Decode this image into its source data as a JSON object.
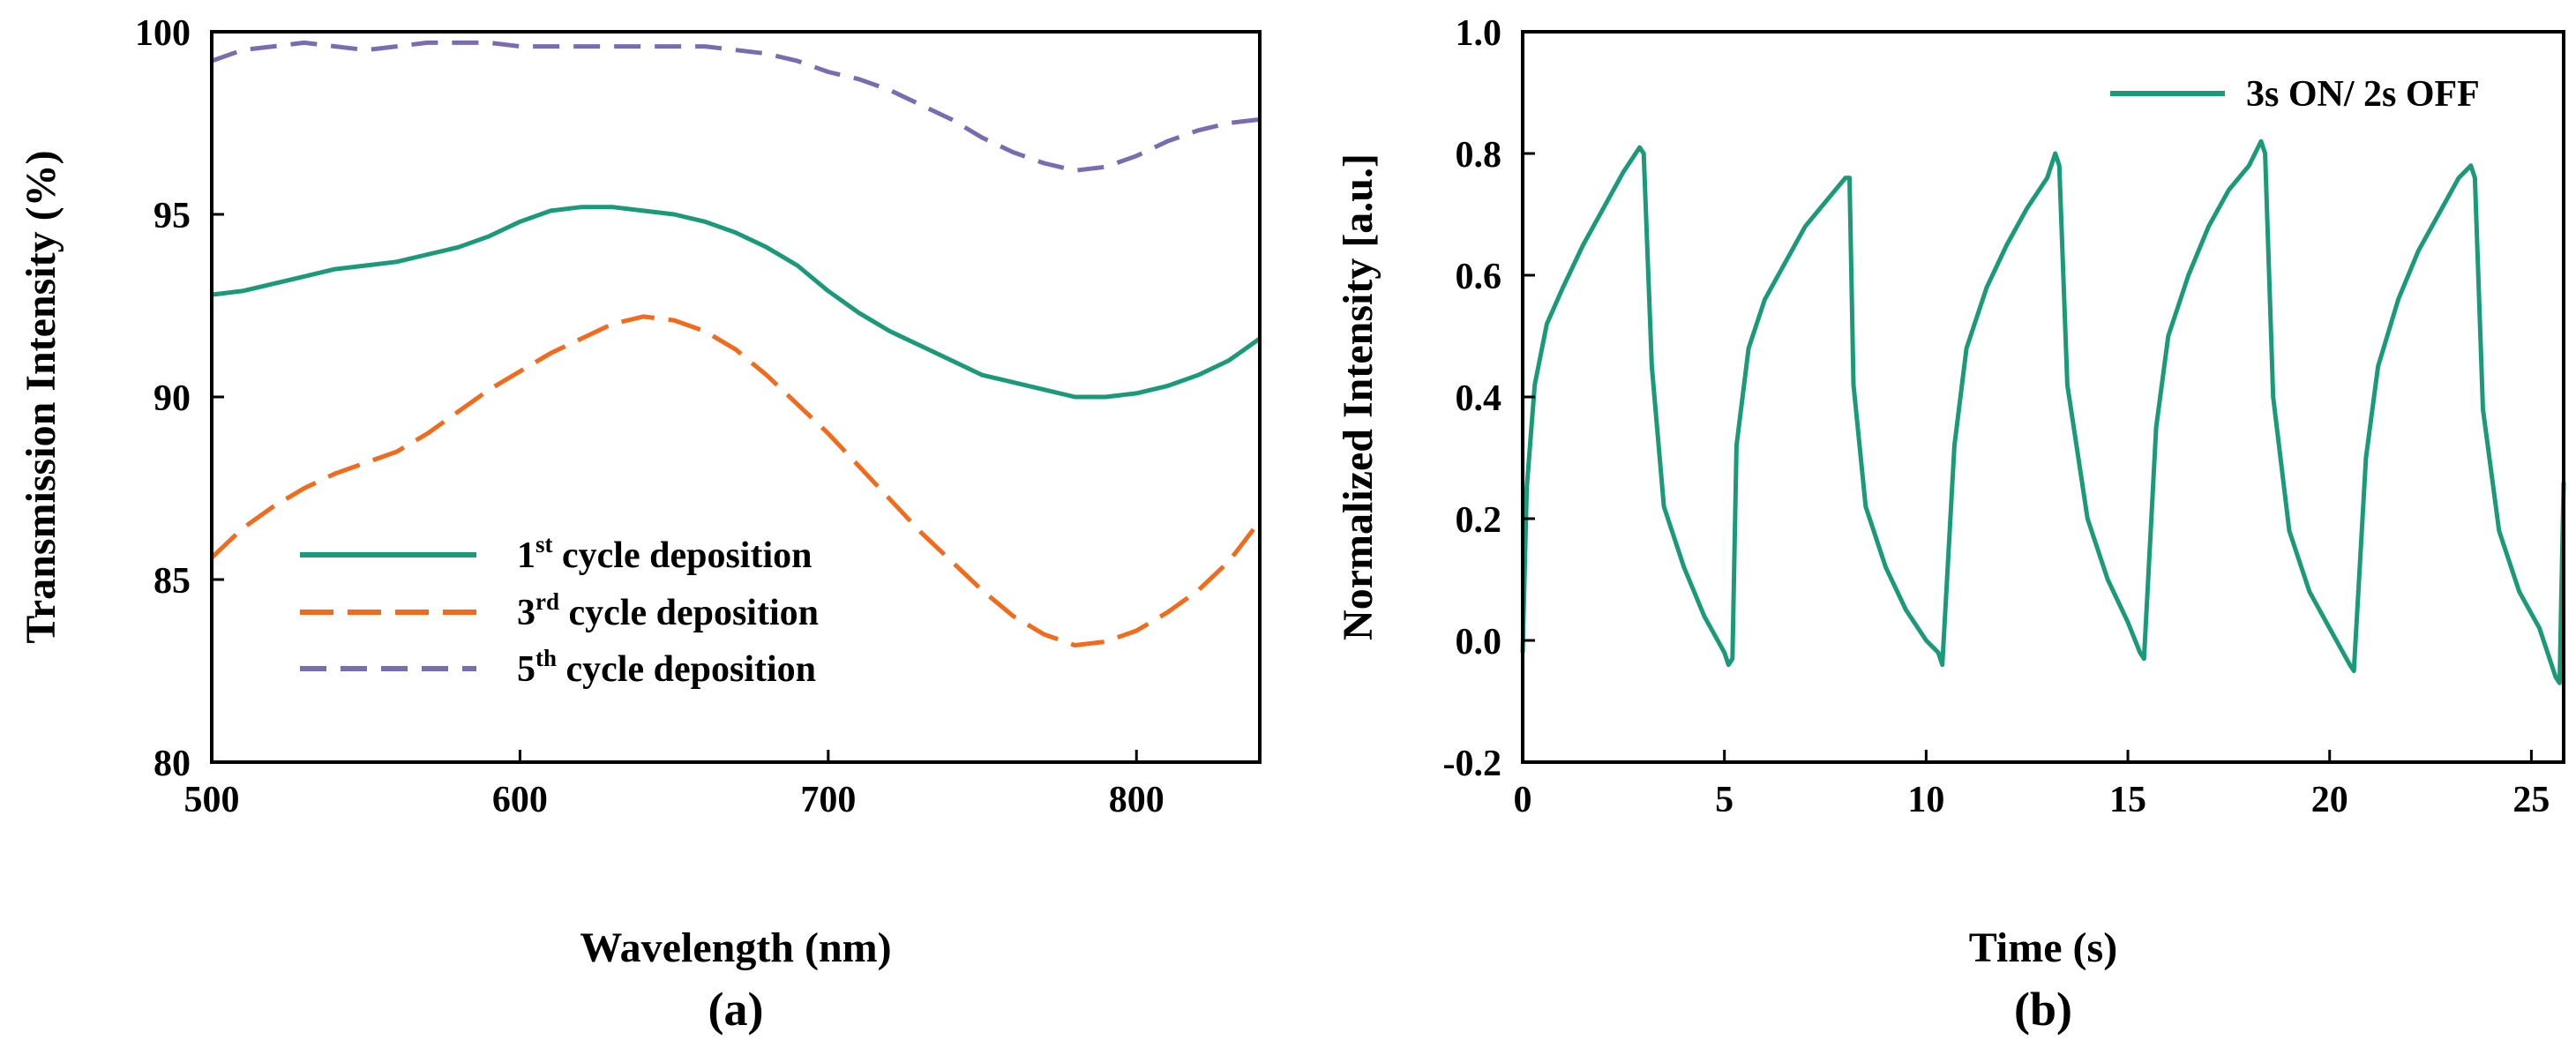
{
  "chart_data": [
    {
      "type": "line",
      "caption": "(a)",
      "xlabel": "Wavelength (nm)",
      "ylabel": "Transmission Intensity (%)",
      "xlim": [
        500,
        840
      ],
      "ylim": [
        80,
        100
      ],
      "xticks": [
        "500",
        "600",
        "700",
        "800"
      ],
      "yticks": [
        "80",
        "85",
        "90",
        "95",
        "100"
      ],
      "legend_position": "bottom-left",
      "series": [
        {
          "name": "1st cycle deposition",
          "label_main": "1",
          "label_sup": "st",
          "label_rest": " cycle deposition",
          "color": "#1a9a78",
          "dash": "solid",
          "x": [
            500,
            510,
            520,
            530,
            540,
            550,
            560,
            570,
            580,
            590,
            600,
            610,
            620,
            630,
            640,
            650,
            660,
            670,
            680,
            690,
            700,
            710,
            720,
            730,
            740,
            750,
            760,
            770,
            780,
            790,
            800,
            810,
            820,
            830,
            840
          ],
          "y": [
            92.8,
            92.9,
            93.1,
            93.3,
            93.5,
            93.6,
            93.7,
            93.9,
            94.1,
            94.4,
            94.8,
            95.1,
            95.2,
            95.2,
            95.1,
            95.0,
            94.8,
            94.5,
            94.1,
            93.6,
            92.9,
            92.3,
            91.8,
            91.4,
            91.0,
            90.6,
            90.4,
            90.2,
            90.0,
            90.0,
            90.1,
            90.3,
            90.6,
            91.0,
            91.6
          ]
        },
        {
          "name": "3rd cycle deposition",
          "label_main": "3",
          "label_sup": "rd",
          "label_rest": " cycle deposition",
          "color": "#f26a1b",
          "dash": "dashed",
          "x": [
            500,
            510,
            520,
            530,
            540,
            550,
            560,
            570,
            580,
            590,
            600,
            610,
            620,
            630,
            640,
            650,
            660,
            670,
            680,
            690,
            700,
            710,
            720,
            730,
            740,
            750,
            760,
            770,
            780,
            790,
            800,
            810,
            820,
            830,
            840
          ],
          "y": [
            85.6,
            86.4,
            87.0,
            87.5,
            87.9,
            88.2,
            88.5,
            89.0,
            89.6,
            90.2,
            90.7,
            91.2,
            91.6,
            92.0,
            92.2,
            92.1,
            91.8,
            91.3,
            90.6,
            89.8,
            89.0,
            88.1,
            87.2,
            86.3,
            85.5,
            84.7,
            84.0,
            83.5,
            83.2,
            83.3,
            83.6,
            84.1,
            84.7,
            85.5,
            86.6
          ]
        },
        {
          "name": "5th cycle deposition",
          "label_main": "5",
          "label_sup": "th",
          "label_rest": " cycle deposition",
          "color": "#7a6cb0",
          "dash": "dashed",
          "x": [
            500,
            510,
            520,
            530,
            540,
            550,
            560,
            570,
            580,
            590,
            600,
            610,
            620,
            630,
            640,
            650,
            660,
            670,
            680,
            690,
            700,
            710,
            720,
            730,
            740,
            750,
            760,
            770,
            780,
            790,
            800,
            810,
            820,
            830,
            840
          ],
          "y": [
            99.2,
            99.5,
            99.6,
            99.7,
            99.6,
            99.5,
            99.6,
            99.7,
            99.7,
            99.7,
            99.6,
            99.6,
            99.6,
            99.6,
            99.6,
            99.6,
            99.6,
            99.5,
            99.4,
            99.2,
            98.9,
            98.7,
            98.4,
            98.0,
            97.6,
            97.1,
            96.7,
            96.4,
            96.2,
            96.3,
            96.6,
            97.0,
            97.3,
            97.5,
            97.6
          ]
        }
      ]
    },
    {
      "type": "line",
      "caption": "(b)",
      "xlabel": "Time (s)",
      "ylabel": "Normalized Intensity [a.u.]",
      "xlim": [
        0,
        25.8
      ],
      "ylim": [
        -0.2,
        1.0
      ],
      "xticks": [
        "0",
        "5",
        "10",
        "15",
        "20",
        "25"
      ],
      "yticks": [
        "-0.2",
        "0.0",
        "0.2",
        "0.4",
        "0.6",
        "0.8",
        "1.0"
      ],
      "legend_position": "top-right",
      "series": [
        {
          "name": "3s ON/ 2s OFF",
          "color": "#1a9a78",
          "dash": "solid",
          "x": [
            0,
            0.1,
            0.3,
            0.6,
            1.0,
            1.5,
            2.0,
            2.5,
            2.9,
            3.0,
            3.2,
            3.5,
            4.0,
            4.5,
            5.0,
            5.1,
            5.2,
            5.3,
            5.6,
            6.0,
            6.5,
            7.0,
            7.5,
            8.0,
            8.1,
            8.2,
            8.5,
            9.0,
            9.5,
            10.0,
            10.3,
            10.4,
            10.7,
            11.0,
            11.5,
            12.0,
            12.5,
            13.0,
            13.2,
            13.3,
            13.5,
            14.0,
            14.5,
            15.0,
            15.3,
            15.4,
            15.7,
            16.0,
            16.5,
            17.0,
            17.5,
            18.0,
            18.3,
            18.4,
            18.6,
            19.0,
            19.5,
            20.0,
            20.5,
            20.6,
            20.9,
            21.2,
            21.7,
            22.2,
            22.7,
            23.2,
            23.5,
            23.6,
            23.8,
            24.2,
            24.7,
            25.2,
            25.6,
            25.7,
            25.8
          ],
          "y": [
            -0.02,
            0.25,
            0.42,
            0.52,
            0.58,
            0.65,
            0.71,
            0.77,
            0.81,
            0.8,
            0.45,
            0.22,
            0.12,
            0.04,
            -0.02,
            -0.04,
            -0.03,
            0.32,
            0.48,
            0.56,
            0.62,
            0.68,
            0.72,
            0.76,
            0.76,
            0.42,
            0.22,
            0.12,
            0.05,
            0.0,
            -0.02,
            -0.04,
            0.32,
            0.48,
            0.58,
            0.65,
            0.71,
            0.76,
            0.8,
            0.78,
            0.42,
            0.2,
            0.1,
            0.03,
            -0.02,
            -0.03,
            0.35,
            0.5,
            0.6,
            0.68,
            0.74,
            0.78,
            0.82,
            0.8,
            0.4,
            0.18,
            0.08,
            0.02,
            -0.04,
            -0.05,
            0.3,
            0.45,
            0.56,
            0.64,
            0.7,
            0.76,
            0.78,
            0.76,
            0.38,
            0.18,
            0.08,
            0.02,
            -0.06,
            -0.07,
            0.26
          ]
        }
      ]
    }
  ]
}
